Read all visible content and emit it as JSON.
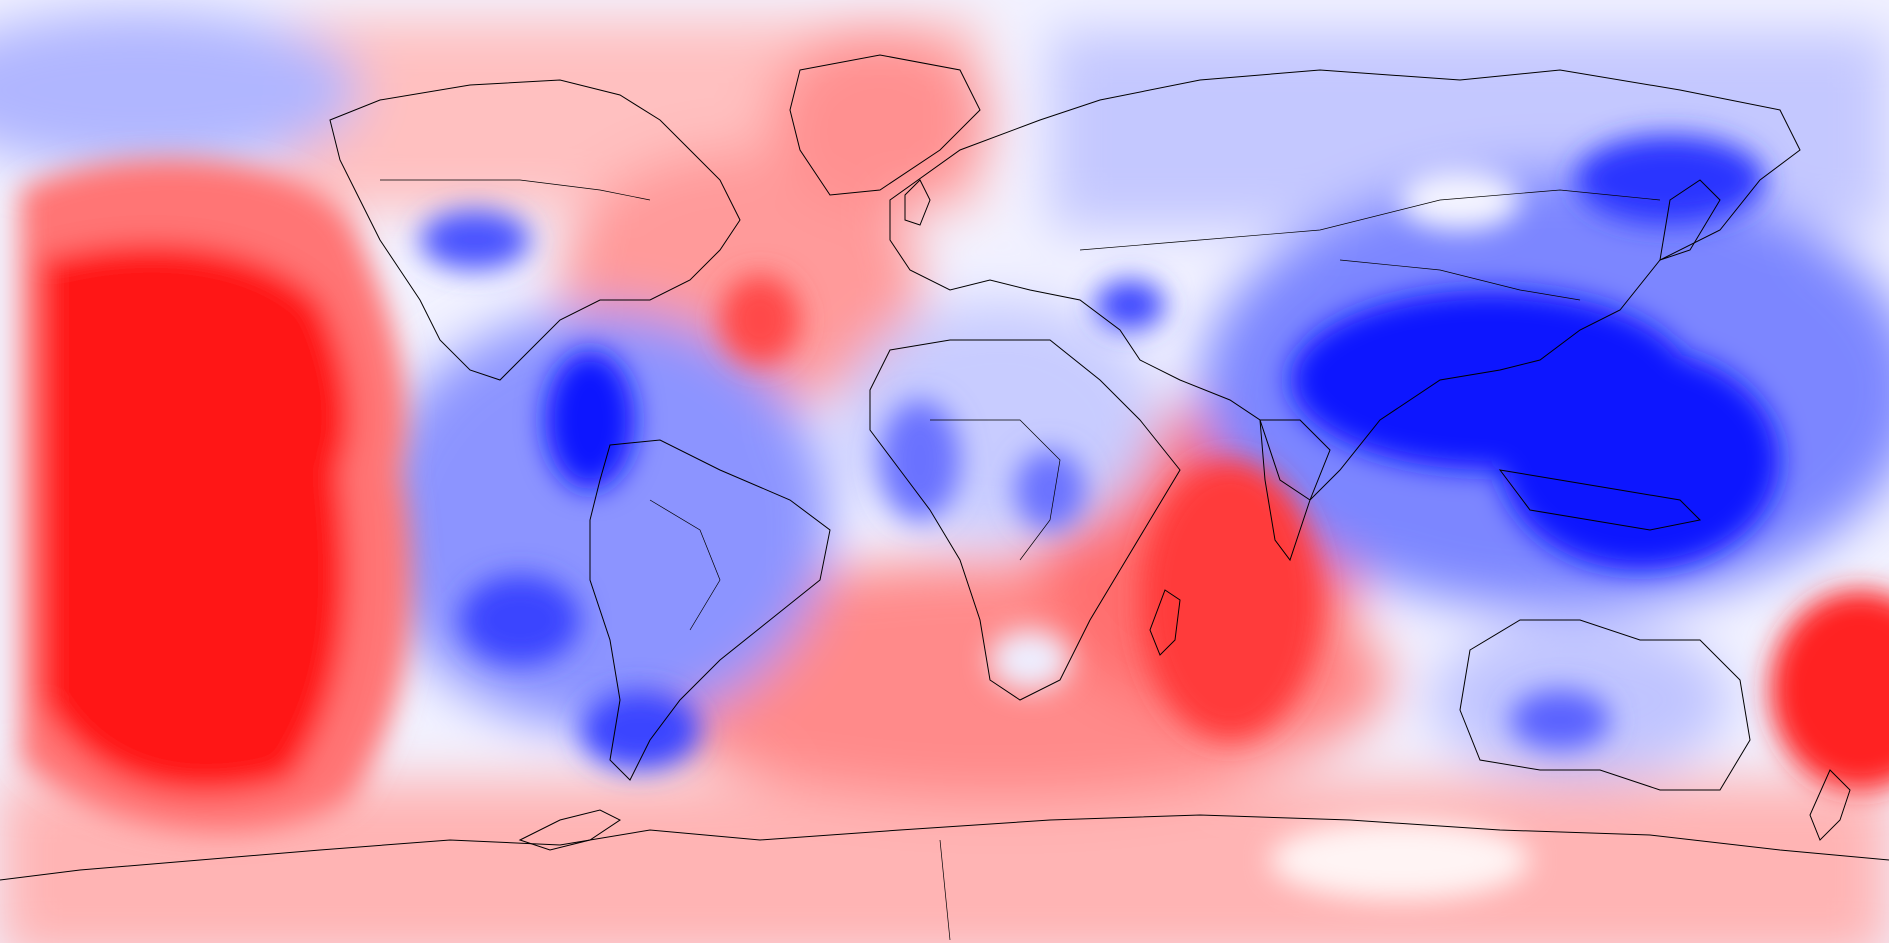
{
  "map": {
    "kind": "global anomaly field",
    "projection": "equirectangular",
    "colors": {
      "warm_strong": "#ff1010",
      "warm_mid": "#ff5a5a",
      "warm_light": "#ffb0b0",
      "neutral": "#f2f2ff",
      "cool_light": "#b8bcff",
      "cool_mid": "#6470ff",
      "cool_strong": "#0a10ff",
      "coastline": "#000000"
    },
    "layers": [
      "anomaly-shading",
      "coastlines",
      "country-borders"
    ]
  }
}
